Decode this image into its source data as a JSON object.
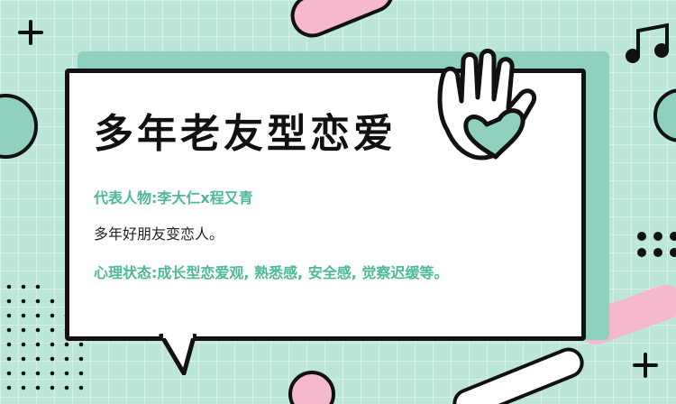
{
  "title": "多年老友型恋爱",
  "representative": "代表人物:李大仁x程又青",
  "description": "多年好朋友变恋人。",
  "psychology": "心理状态:成长型恋爱观, 熟悉感, 安全感, 觉察迟缓等。",
  "colors": {
    "background": "#bde6da",
    "accent_green": "#4db89a",
    "panel_green": "#8fd0be",
    "pink": "#f6b8cc",
    "ink": "#111111"
  },
  "icons": [
    "plus-icon",
    "music-note-icon",
    "heart-hand-icon",
    "dots-icon"
  ]
}
